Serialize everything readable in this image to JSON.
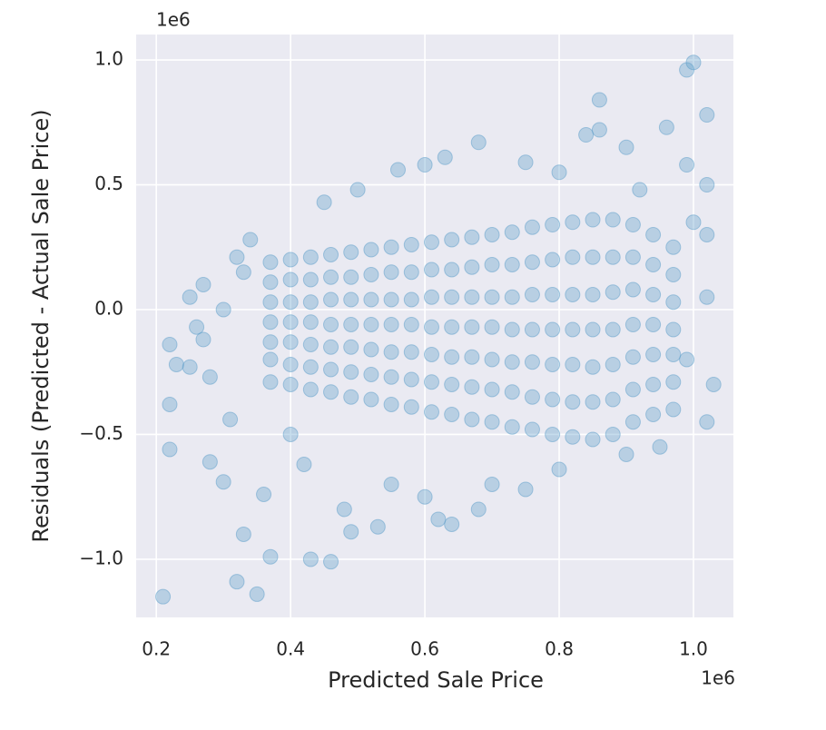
{
  "chart_data": {
    "type": "scatter",
    "xlabel": "Predicted Sale Price",
    "ylabel": "Residuals (Predicted - Actual Sale Price)",
    "x_offset_text": "1e6",
    "y_offset_text": "1e6",
    "xlim": [
      0.17,
      1.0595
    ],
    "ylim": [
      -1.233,
      1.102
    ],
    "xticks": [
      0.2,
      0.4,
      0.6,
      0.8,
      {
        "value": 1,
        "label": "1.0"
      }
    ],
    "yticks": [
      {
        "value": -1,
        "label": "−1.0"
      },
      {
        "value": -0.5,
        "label": "−0.5"
      },
      {
        "value": 0,
        "label": "0.0"
      },
      {
        "value": 0.5,
        "label": "0.5"
      },
      {
        "value": 1,
        "label": "1.0"
      }
    ],
    "grid": true,
    "color": "#5b9ec9",
    "x": [
      0.37,
      0.37,
      0.37,
      0.37,
      0.37,
      0.37,
      0.37,
      0.4,
      0.4,
      0.4,
      0.4,
      0.4,
      0.4,
      0.4,
      0.43,
      0.43,
      0.43,
      0.43,
      0.43,
      0.43,
      0.43,
      0.46,
      0.46,
      0.46,
      0.46,
      0.46,
      0.46,
      0.46,
      0.49,
      0.49,
      0.49,
      0.49,
      0.49,
      0.49,
      0.49,
      0.52,
      0.52,
      0.52,
      0.52,
      0.52,
      0.52,
      0.52,
      0.55,
      0.55,
      0.55,
      0.55,
      0.55,
      0.55,
      0.55,
      0.58,
      0.58,
      0.58,
      0.58,
      0.58,
      0.58,
      0.58,
      0.61,
      0.61,
      0.61,
      0.61,
      0.61,
      0.61,
      0.61,
      0.64,
      0.64,
      0.64,
      0.64,
      0.64,
      0.64,
      0.64,
      0.67,
      0.67,
      0.67,
      0.67,
      0.67,
      0.67,
      0.67,
      0.7,
      0.7,
      0.7,
      0.7,
      0.7,
      0.7,
      0.7,
      0.73,
      0.73,
      0.73,
      0.73,
      0.73,
      0.73,
      0.73,
      0.76,
      0.76,
      0.76,
      0.76,
      0.76,
      0.76,
      0.76,
      0.79,
      0.79,
      0.79,
      0.79,
      0.79,
      0.79,
      0.79,
      0.82,
      0.82,
      0.82,
      0.82,
      0.82,
      0.82,
      0.82,
      0.85,
      0.85,
      0.85,
      0.85,
      0.85,
      0.85,
      0.85,
      0.88,
      0.88,
      0.88,
      0.88,
      0.88,
      0.88,
      0.88,
      0.91,
      0.91,
      0.91,
      0.91,
      0.91,
      0.91,
      0.91,
      0.94,
      0.94,
      0.94,
      0.94,
      0.94,
      0.94,
      0.94,
      0.97,
      0.97,
      0.97,
      0.97,
      0.97,
      0.97,
      0.97,
      0.21,
      0.22,
      0.22,
      0.22,
      0.23,
      0.25,
      0.25,
      0.26,
      0.28,
      0.28,
      0.3,
      0.32,
      0.33,
      0.35,
      0.36,
      0.37,
      0.43,
      0.46,
      0.32,
      0.34,
      0.31,
      0.48,
      0.49,
      0.53,
      0.62,
      0.64,
      0.68,
      0.86,
      0.86,
      0.84,
      0.9,
      0.96,
      0.99,
      1.0,
      1.02,
      1.02,
      0.99,
      1.02,
      1.02,
      1.03,
      1.02,
      0.68,
      0.63,
      0.56,
      0.45,
      0.5,
      0.6,
      0.75,
      0.8,
      0.92,
      0.55,
      0.7,
      0.8,
      0.9,
      0.95,
      0.4,
      0.3,
      0.27,
      0.33,
      0.42,
      0.75,
      0.6,
      0.99,
      1.0,
      0.27
    ],
    "y": [
      -0.29,
      -0.2,
      -0.13,
      -0.05,
      0.03,
      0.11,
      0.19,
      -0.3,
      -0.22,
      -0.13,
      -0.05,
      0.03,
      0.12,
      0.2,
      -0.32,
      -0.23,
      -0.14,
      -0.05,
      0.03,
      0.12,
      0.21,
      -0.33,
      -0.24,
      -0.15,
      -0.06,
      0.04,
      0.13,
      0.22,
      -0.35,
      -0.25,
      -0.15,
      -0.06,
      0.04,
      0.13,
      0.23,
      -0.36,
      -0.26,
      -0.16,
      -0.06,
      0.04,
      0.14,
      0.24,
      -0.38,
      -0.27,
      -0.17,
      -0.06,
      0.04,
      0.15,
      0.25,
      -0.39,
      -0.28,
      -0.17,
      -0.06,
      0.04,
      0.15,
      0.26,
      -0.41,
      -0.29,
      -0.18,
      -0.07,
      0.05,
      0.16,
      0.27,
      -0.42,
      -0.3,
      -0.19,
      -0.07,
      0.05,
      0.16,
      0.28,
      -0.44,
      -0.31,
      -0.19,
      -0.07,
      0.05,
      0.17,
      0.29,
      -0.45,
      -0.32,
      -0.2,
      -0.07,
      0.05,
      0.18,
      0.3,
      -0.47,
      -0.33,
      -0.21,
      -0.08,
      0.05,
      0.18,
      0.31,
      -0.48,
      -0.35,
      -0.21,
      -0.08,
      0.06,
      0.19,
      0.33,
      -0.5,
      -0.36,
      -0.22,
      -0.08,
      0.06,
      0.2,
      0.34,
      -0.51,
      -0.37,
      -0.22,
      -0.08,
      0.06,
      0.21,
      0.35,
      -0.52,
      -0.37,
      -0.23,
      -0.08,
      0.06,
      0.21,
      0.36,
      -0.5,
      -0.36,
      -0.22,
      -0.08,
      0.07,
      0.21,
      0.36,
      -0.45,
      -0.32,
      -0.19,
      -0.06,
      0.08,
      0.21,
      0.34,
      -0.42,
      -0.3,
      -0.18,
      -0.06,
      0.06,
      0.18,
      0.3,
      -0.4,
      -0.29,
      -0.18,
      -0.08,
      0.03,
      0.14,
      0.25,
      -1.15,
      -0.56,
      -0.38,
      -0.14,
      -0.22,
      -0.23,
      0.05,
      -0.07,
      -0.27,
      -0.61,
      -0.69,
      -1.09,
      -0.9,
      -1.14,
      -0.74,
      -0.99,
      -1.0,
      -1.01,
      0.21,
      0.28,
      -0.44,
      -0.8,
      -0.89,
      -0.87,
      -0.84,
      -0.86,
      -0.8,
      0.84,
      0.72,
      0.7,
      0.65,
      0.73,
      0.96,
      0.99,
      0.78,
      0.5,
      0.58,
      0.3,
      -0.45,
      -0.3,
      0.05,
      0.67,
      0.61,
      0.56,
      0.43,
      0.48,
      0.58,
      0.59,
      0.55,
      0.48,
      -0.7,
      -0.7,
      -0.64,
      -0.58,
      -0.55,
      -0.5,
      0.0,
      0.1,
      0.15,
      -0.62,
      -0.72,
      -0.75,
      -0.2,
      0.35,
      -0.12
    ]
  }
}
